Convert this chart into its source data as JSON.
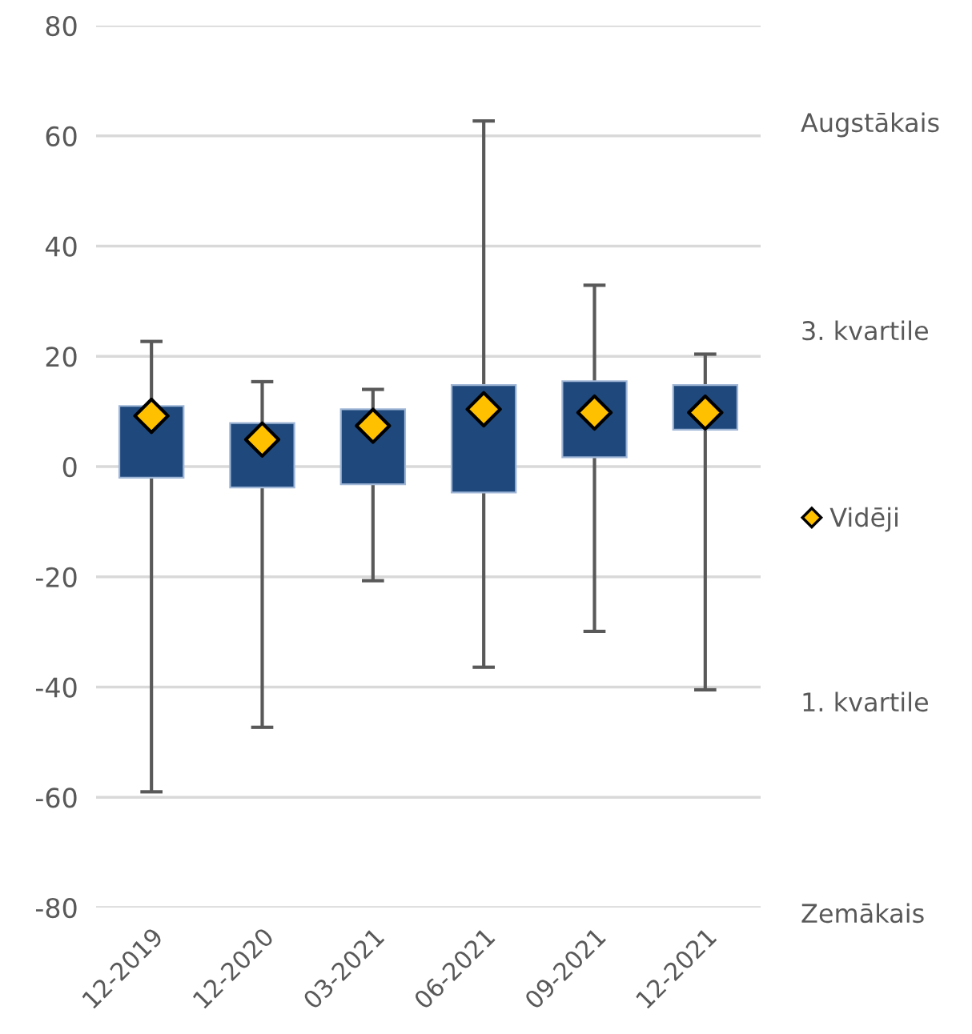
{
  "chart_data": {
    "type": "bar",
    "categories": [
      "12-2019",
      "12-2020",
      "03-2021",
      "06-2021",
      "09-2021",
      "12-2021"
    ],
    "ylim": [
      -80,
      80
    ],
    "yticks": [
      -80,
      -60,
      -40,
      -20,
      0,
      20,
      40,
      60,
      80
    ],
    "grid": "y",
    "legend": "right",
    "annotations": [
      "Augstākais",
      "3. kvartile",
      "1. kvartile",
      "Zemākais"
    ],
    "series": [
      {
        "color": "#1f497d",
        "base": [
          -2.0,
          -3.8,
          -3.2,
          -4.7,
          1.7,
          6.7
        ],
        "values": [
          13.0,
          11.7,
          13.6,
          19.5,
          13.8,
          8.1
        ],
        "errors": [
          [
            -59.0,
            22.7
          ],
          [
            -47.3,
            15.4
          ],
          [
            -20.7,
            14.0
          ],
          [
            -36.4,
            62.7
          ],
          [
            -29.9,
            32.9
          ],
          [
            -40.5,
            20.4
          ]
        ]
      },
      {
        "type": "scatter",
        "name": "Vidēji",
        "color": "#ffc000",
        "marker": "diamond",
        "x": [
          "12-2019",
          "12-2020",
          "03-2021",
          "06-2021",
          "09-2021",
          "12-2021"
        ],
        "values": [
          9.2,
          4.9,
          7.4,
          10.4,
          9.8,
          9.8
        ]
      }
    ]
  }
}
